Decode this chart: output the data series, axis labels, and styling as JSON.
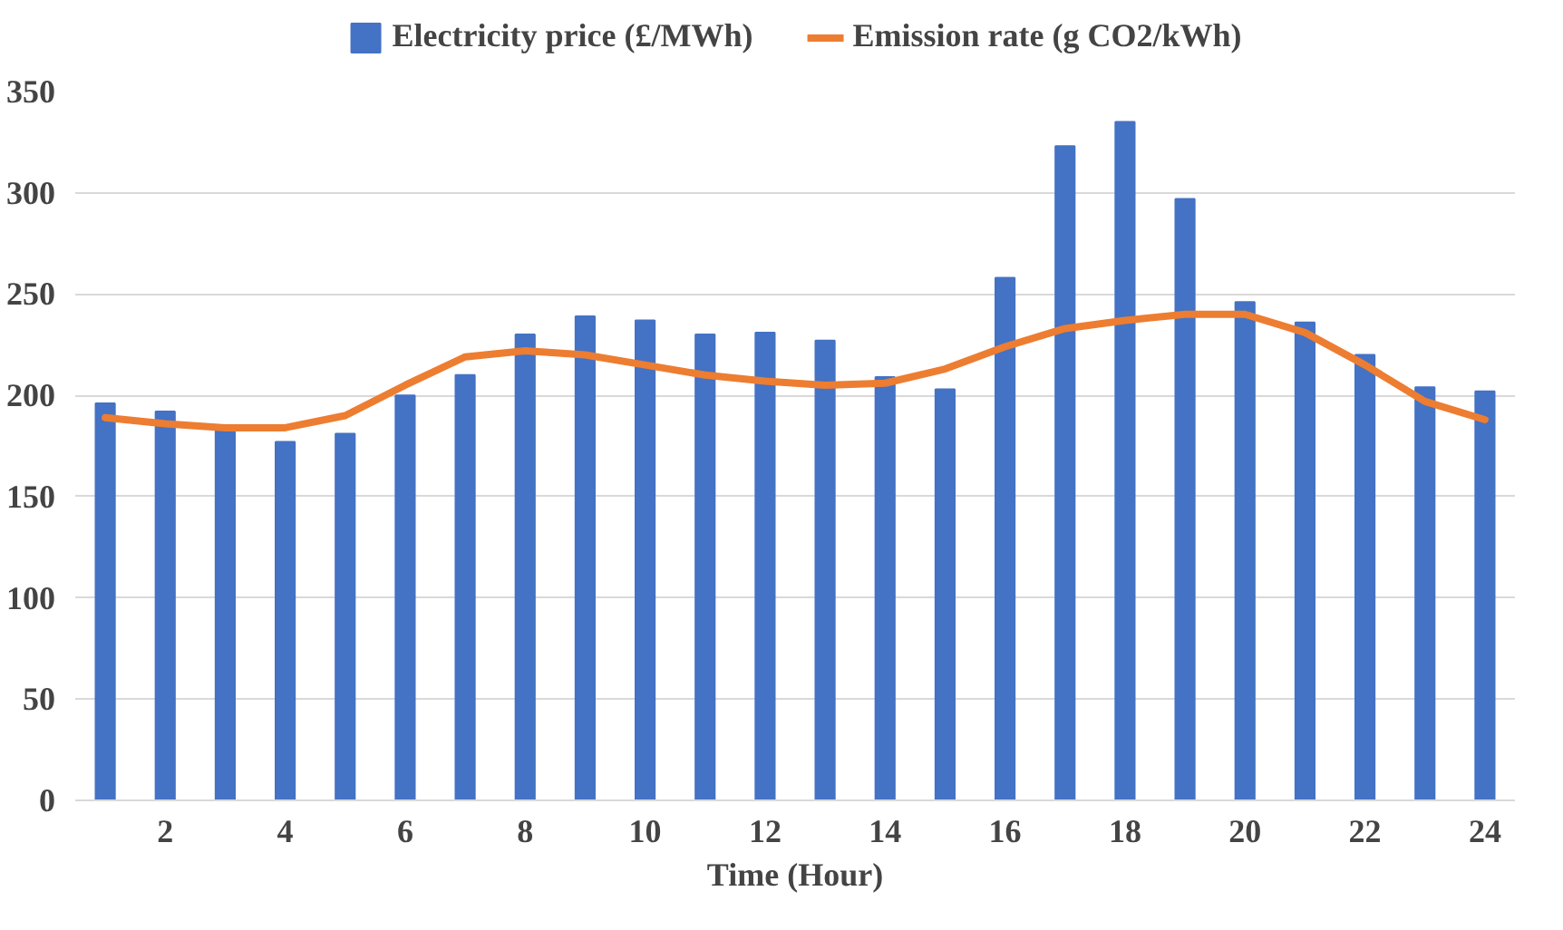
{
  "chart_data": {
    "type": "bar",
    "xlabel": "Time (Hour)",
    "x": [
      1,
      2,
      3,
      4,
      5,
      6,
      7,
      8,
      9,
      10,
      11,
      12,
      13,
      14,
      15,
      16,
      17,
      18,
      19,
      20,
      21,
      22,
      23,
      24
    ],
    "series": [
      {
        "name": "Electricity price (£/MWh)",
        "color": "#4472c4",
        "values": [
          196,
          192,
          184,
          177,
          181,
          200,
          210,
          230,
          239,
          237,
          230,
          231,
          227,
          209,
          203,
          258,
          323,
          335,
          297,
          246,
          236,
          220,
          204,
          202
        ]
      },
      {
        "name": "Emission rate (g CO2/kWh)",
        "type": "line",
        "color": "#ed7d31",
        "values": [
          189,
          186,
          184,
          184,
          190,
          205,
          219,
          222,
          220,
          215,
          210,
          207,
          205,
          206,
          213,
          224,
          233,
          237,
          240,
          240,
          231,
          215,
          197,
          188
        ]
      }
    ],
    "xlim": [
      0.5,
      24.5
    ],
    "xticks": [
      2,
      4,
      6,
      8,
      10,
      12,
      14,
      16,
      18,
      20,
      22,
      24
    ],
    "ylim": [
      0,
      350
    ],
    "yticks": [
      0,
      50,
      100,
      150,
      200,
      250,
      300,
      350
    ],
    "grid": "y",
    "legend": "top",
    "line_style": "solid"
  }
}
